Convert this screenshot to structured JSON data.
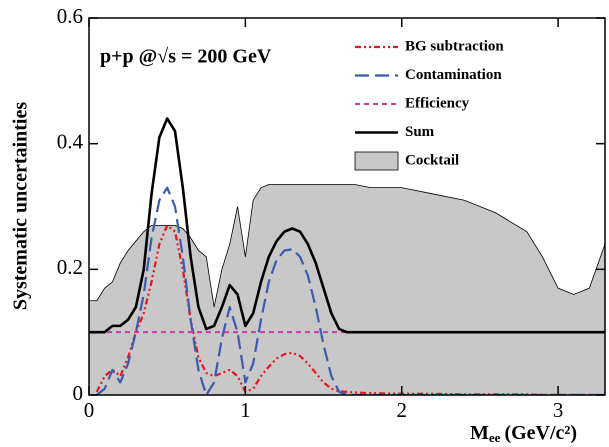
{
  "chart_data": {
    "type": "line",
    "annotation": "p+p @√s = 200 GeV",
    "ylabel": "Systematic uncertainties",
    "xlabel": "M",
    "xlabel_sub": "ee",
    "xlabel_unit": "(GeV/c²)",
    "xlim": [
      0,
      3.3
    ],
    "ylim": [
      0,
      0.6
    ],
    "xticks": [
      0,
      1,
      2,
      3
    ],
    "yticks": [
      0,
      0.2,
      0.4,
      0.6
    ],
    "x": [
      0,
      0.05,
      0.1,
      0.15,
      0.2,
      0.25,
      0.3,
      0.35,
      0.4,
      0.45,
      0.5,
      0.55,
      0.6,
      0.65,
      0.7,
      0.75,
      0.8,
      0.85,
      0.9,
      0.95,
      1.0,
      1.05,
      1.1,
      1.15,
      1.2,
      1.25,
      1.3,
      1.35,
      1.4,
      1.45,
      1.5,
      1.55,
      1.6,
      1.65,
      1.7,
      1.8,
      2.0,
      2.2,
      2.4,
      2.6,
      2.8,
      2.9,
      3.0,
      3.1,
      3.2,
      3.3
    ],
    "legend": "top-right",
    "series": [
      {
        "name": "Cocktail",
        "color": "#c8c8c8",
        "style": "area",
        "values": [
          0.15,
          0.15,
          0.17,
          0.18,
          0.21,
          0.23,
          0.245,
          0.26,
          0.27,
          0.27,
          0.27,
          0.27,
          0.265,
          0.25,
          0.23,
          0.22,
          0.14,
          0.2,
          0.24,
          0.3,
          0.22,
          0.31,
          0.33,
          0.335,
          0.335,
          0.335,
          0.335,
          0.335,
          0.335,
          0.335,
          0.335,
          0.335,
          0.335,
          0.335,
          0.335,
          0.33,
          0.33,
          0.32,
          0.31,
          0.29,
          0.26,
          0.22,
          0.17,
          0.16,
          0.17,
          0.24
        ]
      },
      {
        "name": "BG subtraction",
        "color": "#e8141e",
        "style": "dash-dot-dot",
        "values": [
          null,
          0.005,
          0.03,
          0.04,
          0.03,
          0.06,
          0.1,
          0.13,
          0.18,
          0.24,
          0.27,
          0.26,
          0.2,
          0.12,
          0.06,
          0.035,
          0.03,
          0.035,
          0.04,
          0.03,
          0.005,
          0.01,
          0.03,
          0.045,
          0.058,
          0.065,
          0.067,
          0.062,
          0.05,
          0.035,
          0.02,
          0.01,
          0.006,
          0.005,
          0.004,
          0.003,
          0.002,
          0.002,
          0.001,
          0.001,
          0.001,
          0,
          0,
          0,
          0,
          0
        ]
      },
      {
        "name": "Contamination",
        "color": "#3a5bb0",
        "style": "long-dash",
        "values": [
          null,
          0,
          0.01,
          0.04,
          0.02,
          0.05,
          0.1,
          0.16,
          0.25,
          0.31,
          0.33,
          0.3,
          0.22,
          0.12,
          0.04,
          0,
          0.02,
          0.09,
          0.14,
          0.1,
          0.02,
          0.05,
          0.12,
          0.18,
          0.215,
          0.23,
          0.232,
          0.22,
          0.19,
          0.14,
          0.08,
          0.03,
          0.005,
          0,
          0,
          0,
          0,
          0,
          0,
          0,
          0,
          0,
          0,
          0,
          0,
          0
        ]
      },
      {
        "name": "Efficiency",
        "color": "#c83ca0",
        "style": "dash",
        "values": [
          0.1,
          0.1,
          0.1,
          0.1,
          0.1,
          0.1,
          0.1,
          0.1,
          0.1,
          0.1,
          0.1,
          0.1,
          0.1,
          0.1,
          0.1,
          0.1,
          0.1,
          0.1,
          0.1,
          0.1,
          0.1,
          0.1,
          0.1,
          0.1,
          0.1,
          0.1,
          0.1,
          0.1,
          0.1,
          0.1,
          0.1,
          0.1,
          0.1,
          0.1,
          0.1,
          0.1,
          0.1,
          0.1,
          0.1,
          0.1,
          0.1,
          0.1,
          0.1,
          0.1,
          0.1,
          0.1
        ]
      },
      {
        "name": "Sum",
        "color": "#000000",
        "style": "solid",
        "values": [
          0.1,
          0.1,
          0.1,
          0.11,
          0.11,
          0.12,
          0.14,
          0.2,
          0.32,
          0.41,
          0.44,
          0.42,
          0.33,
          0.22,
          0.14,
          0.105,
          0.11,
          0.14,
          0.175,
          0.16,
          0.11,
          0.13,
          0.18,
          0.22,
          0.245,
          0.26,
          0.265,
          0.26,
          0.24,
          0.21,
          0.17,
          0.13,
          0.105,
          0.1,
          0.1,
          0.1,
          0.1,
          0.1,
          0.1,
          0.1,
          0.1,
          0.1,
          0.1,
          0.1,
          0.1,
          0.1
        ]
      }
    ],
    "legend_order": [
      1,
      2,
      3,
      4,
      0
    ]
  }
}
